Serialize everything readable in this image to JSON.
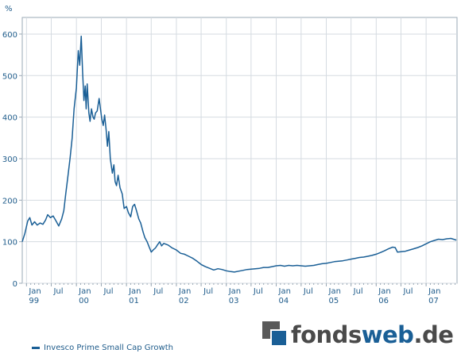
{
  "chart_data": {
    "type": "line",
    "ylabel": "%",
    "ylim": [
      0,
      640
    ],
    "yticks": [
      0,
      100,
      200,
      300,
      400,
      500,
      600
    ],
    "xlim": [
      "1998-12-01",
      "2007-08-15"
    ],
    "x_ticks": [
      {
        "date": "1999-01-01",
        "label": "Jan",
        "year": "99"
      },
      {
        "date": "1999-07-01",
        "label": "Jul",
        "year": ""
      },
      {
        "date": "2000-01-01",
        "label": "Jan",
        "year": "00"
      },
      {
        "date": "2000-07-01",
        "label": "Jul",
        "year": ""
      },
      {
        "date": "2001-01-01",
        "label": "Jan",
        "year": "01"
      },
      {
        "date": "2001-07-01",
        "label": "Jul",
        "year": ""
      },
      {
        "date": "2002-01-01",
        "label": "Jan",
        "year": "02"
      },
      {
        "date": "2002-07-01",
        "label": "Jul",
        "year": ""
      },
      {
        "date": "2003-01-01",
        "label": "Jan",
        "year": "03"
      },
      {
        "date": "2003-07-01",
        "label": "Jul",
        "year": ""
      },
      {
        "date": "2004-01-01",
        "label": "Jan",
        "year": "04"
      },
      {
        "date": "2004-07-01",
        "label": "Jul",
        "year": ""
      },
      {
        "date": "2005-01-01",
        "label": "Jan",
        "year": "05"
      },
      {
        "date": "2005-07-01",
        "label": "Jul",
        "year": ""
      },
      {
        "date": "2006-01-01",
        "label": "Jan",
        "year": "06"
      },
      {
        "date": "2006-07-01",
        "label": "Jul",
        "year": ""
      },
      {
        "date": "2007-01-01",
        "label": "Jan",
        "year": "07"
      }
    ],
    "grid": true,
    "legend_position": "bottom-left",
    "series": [
      {
        "name": "Invesco Prime Small Cap Growth",
        "color": "#1a5f96",
        "points": [
          [
            "1998-12-01",
            100
          ],
          [
            "1998-12-20",
            120
          ],
          [
            "1999-01-10",
            150
          ],
          [
            "1999-01-25",
            158
          ],
          [
            "1999-02-10",
            140
          ],
          [
            "1999-03-01",
            148
          ],
          [
            "1999-03-20",
            140
          ],
          [
            "1999-04-10",
            145
          ],
          [
            "1999-05-01",
            142
          ],
          [
            "1999-05-20",
            152
          ],
          [
            "1999-06-05",
            165
          ],
          [
            "1999-06-25",
            158
          ],
          [
            "1999-07-15",
            162
          ],
          [
            "1999-08-05",
            150
          ],
          [
            "1999-08-25",
            138
          ],
          [
            "1999-09-15",
            155
          ],
          [
            "1999-10-01",
            175
          ],
          [
            "1999-10-15",
            215
          ],
          [
            "1999-11-01",
            260
          ],
          [
            "1999-11-15",
            300
          ],
          [
            "1999-12-01",
            350
          ],
          [
            "1999-12-15",
            420
          ],
          [
            "2000-01-01",
            470
          ],
          [
            "2000-01-15",
            560
          ],
          [
            "2000-01-25",
            525
          ],
          [
            "2000-02-05",
            595
          ],
          [
            "2000-02-15",
            510
          ],
          [
            "2000-02-25",
            440
          ],
          [
            "2000-03-05",
            475
          ],
          [
            "2000-03-12",
            420
          ],
          [
            "2000-03-20",
            480
          ],
          [
            "2000-04-01",
            410
          ],
          [
            "2000-04-10",
            390
          ],
          [
            "2000-04-20",
            420
          ],
          [
            "2000-05-01",
            400
          ],
          [
            "2000-05-10",
            395
          ],
          [
            "2000-05-20",
            410
          ],
          [
            "2000-06-01",
            415
          ],
          [
            "2000-06-15",
            445
          ],
          [
            "2000-06-25",
            420
          ],
          [
            "2000-07-05",
            395
          ],
          [
            "2000-07-15",
            380
          ],
          [
            "2000-07-25",
            405
          ],
          [
            "2000-08-05",
            370
          ],
          [
            "2000-08-15",
            330
          ],
          [
            "2000-08-25",
            365
          ],
          [
            "2000-09-05",
            300
          ],
          [
            "2000-09-20",
            265
          ],
          [
            "2000-10-01",
            285
          ],
          [
            "2000-10-10",
            245
          ],
          [
            "2000-10-20",
            235
          ],
          [
            "2000-11-01",
            260
          ],
          [
            "2000-11-15",
            230
          ],
          [
            "2000-12-01",
            215
          ],
          [
            "2000-12-15",
            180
          ],
          [
            "2001-01-01",
            185
          ],
          [
            "2001-01-15",
            170
          ],
          [
            "2001-02-01",
            160
          ],
          [
            "2001-02-15",
            185
          ],
          [
            "2001-03-01",
            190
          ],
          [
            "2001-03-15",
            175
          ],
          [
            "2001-04-01",
            155
          ],
          [
            "2001-04-15",
            145
          ],
          [
            "2001-05-01",
            125
          ],
          [
            "2001-05-15",
            110
          ],
          [
            "2001-06-01",
            100
          ],
          [
            "2001-06-15",
            88
          ],
          [
            "2001-07-01",
            75
          ],
          [
            "2001-07-15",
            80
          ],
          [
            "2001-08-01",
            85
          ],
          [
            "2001-08-15",
            92
          ],
          [
            "2001-09-01",
            100
          ],
          [
            "2001-09-15",
            90
          ],
          [
            "2001-10-01",
            96
          ],
          [
            "2001-11-01",
            92
          ],
          [
            "2001-12-01",
            85
          ],
          [
            "2002-01-01",
            80
          ],
          [
            "2002-02-01",
            72
          ],
          [
            "2002-03-01",
            70
          ],
          [
            "2002-04-01",
            65
          ],
          [
            "2002-05-01",
            60
          ],
          [
            "2002-06-01",
            53
          ],
          [
            "2002-07-01",
            45
          ],
          [
            "2002-08-01",
            40
          ],
          [
            "2002-09-01",
            36
          ],
          [
            "2002-10-01",
            32
          ],
          [
            "2002-11-01",
            35
          ],
          [
            "2002-12-01",
            33
          ],
          [
            "2003-01-01",
            30
          ],
          [
            "2003-02-01",
            28
          ],
          [
            "2003-03-01",
            27
          ],
          [
            "2003-04-01",
            29
          ],
          [
            "2003-05-01",
            31
          ],
          [
            "2003-06-01",
            33
          ],
          [
            "2003-07-01",
            34
          ],
          [
            "2003-08-01",
            35
          ],
          [
            "2003-09-01",
            36
          ],
          [
            "2003-10-01",
            38
          ],
          [
            "2003-11-01",
            38
          ],
          [
            "2003-12-01",
            40
          ],
          [
            "2004-01-01",
            42
          ],
          [
            "2004-02-01",
            43
          ],
          [
            "2004-03-01",
            41
          ],
          [
            "2004-04-01",
            43
          ],
          [
            "2004-05-01",
            42
          ],
          [
            "2004-06-01",
            43
          ],
          [
            "2004-07-01",
            42
          ],
          [
            "2004-08-01",
            41
          ],
          [
            "2004-09-01",
            42
          ],
          [
            "2004-10-01",
            43
          ],
          [
            "2004-11-01",
            45
          ],
          [
            "2004-12-01",
            47
          ],
          [
            "2005-01-01",
            48
          ],
          [
            "2005-02-01",
            50
          ],
          [
            "2005-03-01",
            52
          ],
          [
            "2005-04-01",
            53
          ],
          [
            "2005-05-01",
            54
          ],
          [
            "2005-06-01",
            56
          ],
          [
            "2005-07-01",
            58
          ],
          [
            "2005-08-01",
            60
          ],
          [
            "2005-09-01",
            62
          ],
          [
            "2005-10-01",
            63
          ],
          [
            "2005-11-01",
            65
          ],
          [
            "2005-12-01",
            67
          ],
          [
            "2006-01-01",
            70
          ],
          [
            "2006-02-01",
            74
          ],
          [
            "2006-03-01",
            78
          ],
          [
            "2006-04-01",
            83
          ],
          [
            "2006-05-01",
            87
          ],
          [
            "2006-05-20",
            86
          ],
          [
            "2006-06-05",
            75
          ],
          [
            "2006-07-01",
            76
          ],
          [
            "2006-08-01",
            77
          ],
          [
            "2006-09-01",
            80
          ],
          [
            "2006-10-01",
            83
          ],
          [
            "2006-11-01",
            86
          ],
          [
            "2006-12-01",
            90
          ],
          [
            "2007-01-01",
            95
          ],
          [
            "2007-02-01",
            100
          ],
          [
            "2007-03-01",
            103
          ],
          [
            "2007-04-01",
            106
          ],
          [
            "2007-05-01",
            105
          ],
          [
            "2007-06-01",
            107
          ],
          [
            "2007-07-01",
            108
          ],
          [
            "2007-08-10",
            104
          ]
        ]
      }
    ]
  },
  "legend": {
    "label": "Invesco Prime Small Cap Growth"
  },
  "logo": {
    "fonds": "fonds",
    "web": "web",
    "de": ".de"
  }
}
